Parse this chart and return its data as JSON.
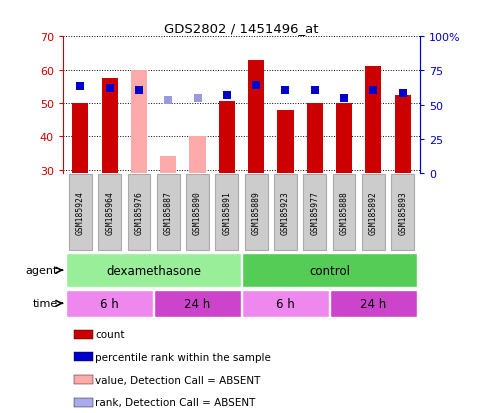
{
  "title": "GDS2802 / 1451496_at",
  "samples": [
    "GSM185924",
    "GSM185964",
    "GSM185976",
    "GSM185887",
    "GSM185890",
    "GSM185891",
    "GSM185889",
    "GSM185923",
    "GSM185977",
    "GSM185888",
    "GSM185892",
    "GSM185893"
  ],
  "bar_values": [
    50,
    57.5,
    60,
    34,
    40,
    50.5,
    63,
    48,
    50,
    50,
    61,
    52.5
  ],
  "bar_colors": [
    "#cc0000",
    "#cc0000",
    "#ffaaaa",
    "#ffaaaa",
    "#ffaaaa",
    "#cc0000",
    "#cc0000",
    "#cc0000",
    "#cc0000",
    "#cc0000",
    "#cc0000",
    "#cc0000"
  ],
  "rank_values": [
    55,
    54.5,
    54,
    51,
    51.5,
    52.5,
    55.5,
    54,
    54,
    51.5,
    54,
    53
  ],
  "rank_colors": [
    "#0000cc",
    "#0000cc",
    "#0000cc",
    "#9999dd",
    "#9999dd",
    "#0000cc",
    "#0000cc",
    "#0000cc",
    "#0000cc",
    "#0000cc",
    "#0000cc",
    "#0000cc"
  ],
  "ylim_left": [
    29,
    70
  ],
  "ylim_right": [
    0,
    100
  ],
  "yticks_left": [
    30,
    40,
    50,
    60,
    70
  ],
  "yticks_right": [
    0,
    25,
    50,
    75,
    100
  ],
  "ytick_labels_right": [
    "0",
    "25",
    "50",
    "75",
    "100%"
  ],
  "agent_groups": [
    {
      "label": "dexamethasone",
      "start": 0,
      "end": 5,
      "color": "#99ee99"
    },
    {
      "label": "control",
      "start": 6,
      "end": 11,
      "color": "#55cc55"
    }
  ],
  "time_groups": [
    {
      "label": "6 h",
      "start": 0,
      "end": 2,
      "color": "#ee88ee"
    },
    {
      "label": "24 h",
      "start": 3,
      "end": 5,
      "color": "#cc44cc"
    },
    {
      "label": "6 h",
      "start": 6,
      "end": 8,
      "color": "#ee88ee"
    },
    {
      "label": "24 h",
      "start": 9,
      "end": 11,
      "color": "#cc44cc"
    }
  ],
  "legend_items": [
    {
      "label": "count",
      "color": "#cc0000"
    },
    {
      "label": "percentile rank within the sample",
      "color": "#0000cc"
    },
    {
      "label": "value, Detection Call = ABSENT",
      "color": "#ffaaaa"
    },
    {
      "label": "rank, Detection Call = ABSENT",
      "color": "#aaaaee"
    }
  ],
  "bar_bottom": 29,
  "rank_marker_size": 6,
  "left_tick_color": "#cc0000",
  "right_tick_color": "#0000cc",
  "gray_box_color": "#cccccc",
  "gray_box_edge": "#aaaaaa"
}
